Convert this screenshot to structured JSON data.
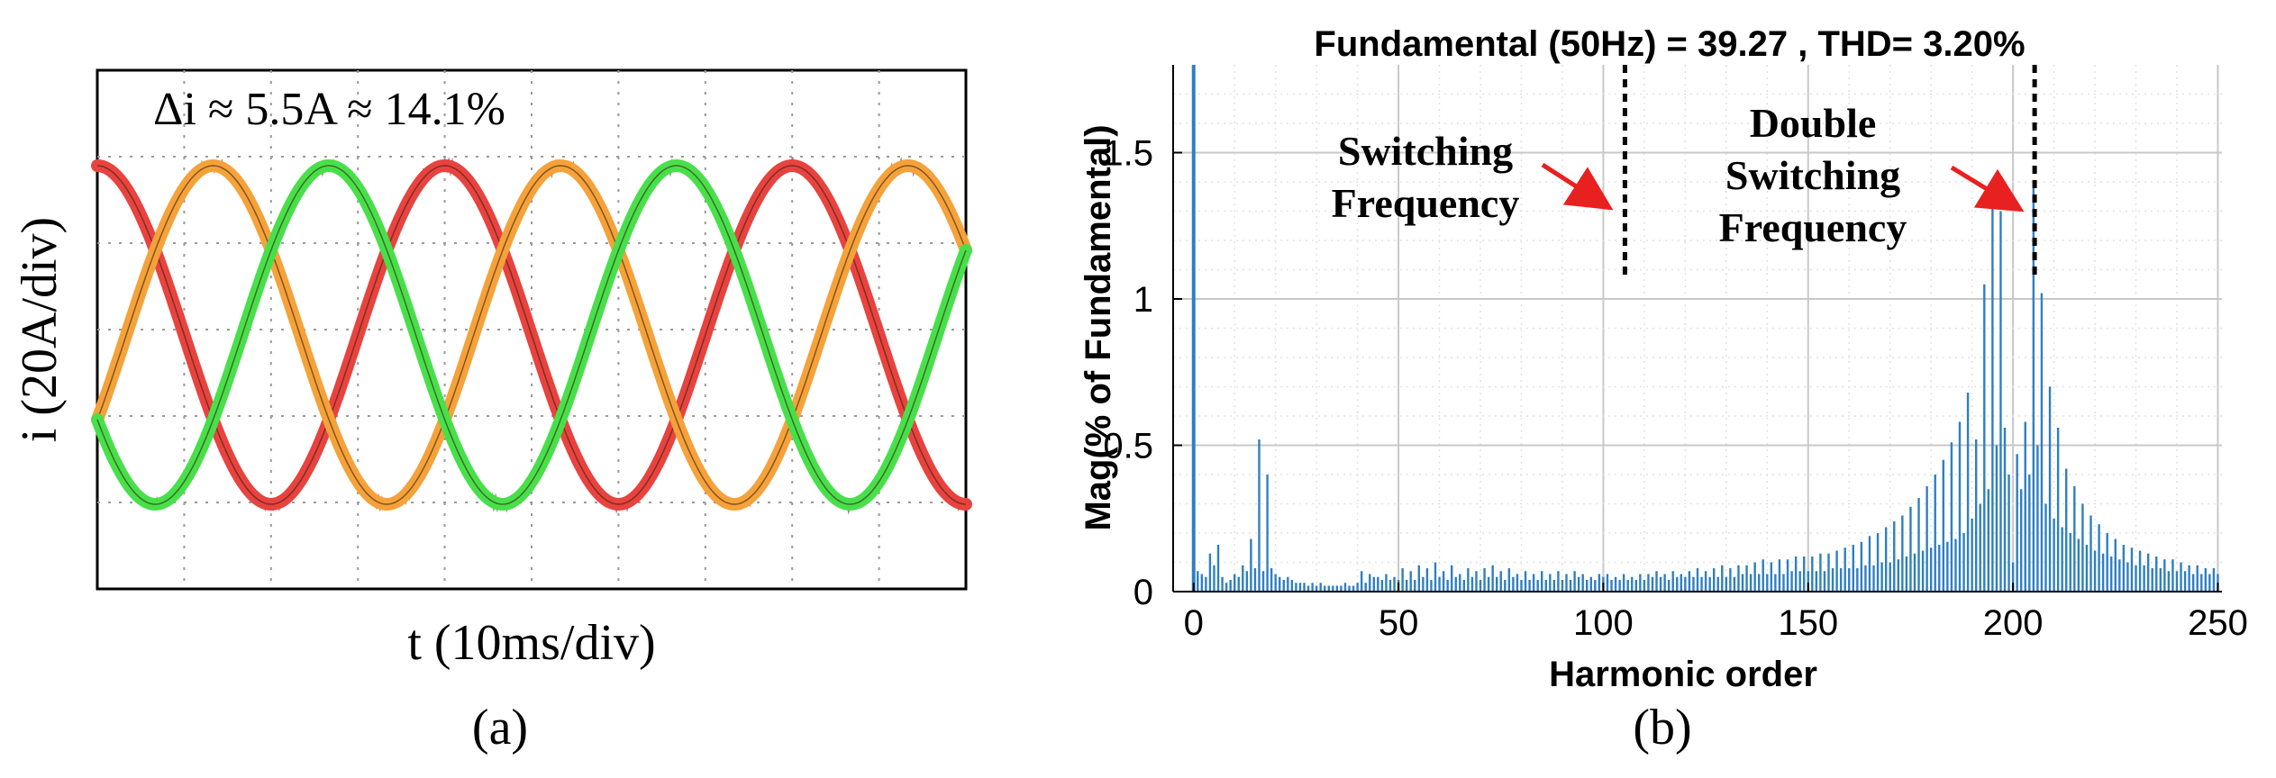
{
  "chart_data": [
    {
      "type": "line",
      "panel_label": "(a)",
      "annotation": "Δi ≈ 5.5A ≈  14.1%",
      "xlabel": "t (10ms/div)",
      "ylabel": "i (20A/div)",
      "xlim": [
        0,
        10
      ],
      "ylim": [
        -1.5,
        1.5
      ],
      "grid": true,
      "phase_shift_deg": [
        0,
        -120,
        120
      ],
      "series": [
        {
          "color": "#e8433f",
          "amplitude": 1.0,
          "phase_deg": 90
        },
        {
          "color": "#f5a23a",
          "amplitude": 1.0,
          "phase_deg": -30
        },
        {
          "color": "#48e04a",
          "amplitude": 1.0,
          "phase_deg": 210
        }
      ],
      "period_div": 4.0,
      "ripple_color": "#5a2b1a"
    },
    {
      "type": "bar",
      "panel_label": "(b)",
      "title": "Fundamental (50Hz) = 39.27 , THD= 3.20%",
      "xlabel": "Harmonic order",
      "ylabel": "Mag(% of Fundamental)",
      "xlim": [
        -5,
        251
      ],
      "ylim": [
        0,
        1.8
      ],
      "xticks": [
        0,
        50,
        100,
        150,
        200,
        250
      ],
      "yticks": [
        0,
        0.5,
        1,
        1.5
      ],
      "ytick_labels": [
        "0",
        "0.5",
        "1",
        "1.5"
      ],
      "grid": true,
      "bar_color": "#2f7fc1",
      "fundamental": {
        "x": 0,
        "value": 100
      },
      "harmonics": [
        [
          1,
          0.07
        ],
        [
          2,
          0.06
        ],
        [
          3,
          0.05
        ],
        [
          4,
          0.13
        ],
        [
          5,
          0.09
        ],
        [
          6,
          0.16
        ],
        [
          7,
          0.05
        ],
        [
          8,
          0.03
        ],
        [
          9,
          0.04
        ],
        [
          10,
          0.06
        ],
        [
          11,
          0.05
        ],
        [
          12,
          0.09
        ],
        [
          13,
          0.07
        ],
        [
          14,
          0.18
        ],
        [
          15,
          0.08
        ],
        [
          16,
          0.52
        ],
        [
          17,
          0.07
        ],
        [
          18,
          0.4
        ],
        [
          19,
          0.08
        ],
        [
          20,
          0.06
        ],
        [
          21,
          0.05
        ],
        [
          22,
          0.04
        ],
        [
          23,
          0.05
        ],
        [
          24,
          0.04
        ],
        [
          25,
          0.03
        ],
        [
          26,
          0.03
        ],
        [
          27,
          0.03
        ],
        [
          28,
          0.02
        ],
        [
          29,
          0.03
        ],
        [
          30,
          0.02
        ],
        [
          31,
          0.03
        ],
        [
          32,
          0.02
        ],
        [
          33,
          0.02
        ],
        [
          34,
          0.02
        ],
        [
          35,
          0.02
        ],
        [
          36,
          0.02
        ],
        [
          37,
          0.03
        ],
        [
          38,
          0.02
        ],
        [
          39,
          0.02
        ],
        [
          40,
          0.03
        ],
        [
          41,
          0.07
        ],
        [
          42,
          0.03
        ],
        [
          43,
          0.06
        ],
        [
          44,
          0.05
        ],
        [
          45,
          0.05
        ],
        [
          46,
          0.04
        ],
        [
          47,
          0.06
        ],
        [
          48,
          0.04
        ],
        [
          49,
          0.05
        ],
        [
          50,
          0.04
        ],
        [
          51,
          0.08
        ],
        [
          52,
          0.04
        ],
        [
          53,
          0.07
        ],
        [
          54,
          0.04
        ],
        [
          55,
          0.09
        ],
        [
          56,
          0.05
        ],
        [
          57,
          0.08
        ],
        [
          58,
          0.04
        ],
        [
          59,
          0.1
        ],
        [
          60,
          0.05
        ],
        [
          61,
          0.07
        ],
        [
          62,
          0.04
        ],
        [
          63,
          0.09
        ],
        [
          64,
          0.05
        ],
        [
          65,
          0.06
        ],
        [
          66,
          0.04
        ],
        [
          67,
          0.08
        ],
        [
          68,
          0.05
        ],
        [
          69,
          0.07
        ],
        [
          70,
          0.04
        ],
        [
          71,
          0.08
        ],
        [
          72,
          0.05
        ],
        [
          73,
          0.09
        ],
        [
          74,
          0.05
        ],
        [
          75,
          0.07
        ],
        [
          76,
          0.04
        ],
        [
          77,
          0.08
        ],
        [
          78,
          0.05
        ],
        [
          79,
          0.06
        ],
        [
          80,
          0.04
        ],
        [
          81,
          0.07
        ],
        [
          82,
          0.04
        ],
        [
          83,
          0.06
        ],
        [
          84,
          0.04
        ],
        [
          85,
          0.07
        ],
        [
          86,
          0.04
        ],
        [
          87,
          0.06
        ],
        [
          88,
          0.04
        ],
        [
          89,
          0.07
        ],
        [
          90,
          0.04
        ],
        [
          91,
          0.06
        ],
        [
          92,
          0.04
        ],
        [
          93,
          0.07
        ],
        [
          94,
          0.05
        ],
        [
          95,
          0.06
        ],
        [
          96,
          0.04
        ],
        [
          97,
          0.05
        ],
        [
          98,
          0.04
        ],
        [
          99,
          0.06
        ],
        [
          100,
          0.05
        ],
        [
          101,
          0.06
        ],
        [
          102,
          0.04
        ],
        [
          103,
          0.05
        ],
        [
          104,
          0.04
        ],
        [
          105,
          0.06
        ],
        [
          106,
          0.04
        ],
        [
          107,
          0.05
        ],
        [
          108,
          0.04
        ],
        [
          109,
          0.06
        ],
        [
          110,
          0.04
        ],
        [
          111,
          0.06
        ],
        [
          112,
          0.05
        ],
        [
          113,
          0.07
        ],
        [
          114,
          0.05
        ],
        [
          115,
          0.06
        ],
        [
          116,
          0.04
        ],
        [
          117,
          0.07
        ],
        [
          118,
          0.05
        ],
        [
          119,
          0.06
        ],
        [
          120,
          0.05
        ],
        [
          121,
          0.07
        ],
        [
          122,
          0.05
        ],
        [
          123,
          0.08
        ],
        [
          124,
          0.05
        ],
        [
          125,
          0.07
        ],
        [
          126,
          0.05
        ],
        [
          127,
          0.08
        ],
        [
          128,
          0.05
        ],
        [
          129,
          0.09
        ],
        [
          130,
          0.05
        ],
        [
          131,
          0.08
        ],
        [
          132,
          0.05
        ],
        [
          133,
          0.09
        ],
        [
          134,
          0.06
        ],
        [
          135,
          0.09
        ],
        [
          136,
          0.06
        ],
        [
          137,
          0.1
        ],
        [
          138,
          0.06
        ],
        [
          139,
          0.11
        ],
        [
          140,
          0.06
        ],
        [
          141,
          0.1
        ],
        [
          142,
          0.06
        ],
        [
          143,
          0.11
        ],
        [
          144,
          0.06
        ],
        [
          145,
          0.11
        ],
        [
          146,
          0.07
        ],
        [
          147,
          0.12
        ],
        [
          148,
          0.07
        ],
        [
          149,
          0.12
        ],
        [
          150,
          0.07
        ],
        [
          151,
          0.12
        ],
        [
          152,
          0.07
        ],
        [
          153,
          0.13
        ],
        [
          154,
          0.07
        ],
        [
          155,
          0.13
        ],
        [
          156,
          0.08
        ],
        [
          157,
          0.14
        ],
        [
          158,
          0.08
        ],
        [
          159,
          0.15
        ],
        [
          160,
          0.08
        ],
        [
          161,
          0.16
        ],
        [
          162,
          0.08
        ],
        [
          163,
          0.17
        ],
        [
          164,
          0.09
        ],
        [
          165,
          0.19
        ],
        [
          166,
          0.09
        ],
        [
          167,
          0.2
        ],
        [
          168,
          0.1
        ],
        [
          169,
          0.22
        ],
        [
          170,
          0.1
        ],
        [
          171,
          0.24
        ],
        [
          172,
          0.11
        ],
        [
          173,
          0.26
        ],
        [
          174,
          0.12
        ],
        [
          175,
          0.29
        ],
        [
          176,
          0.13
        ],
        [
          177,
          0.32
        ],
        [
          178,
          0.14
        ],
        [
          179,
          0.36
        ],
        [
          180,
          0.15
        ],
        [
          181,
          0.4
        ],
        [
          182,
          0.16
        ],
        [
          183,
          0.45
        ],
        [
          184,
          0.17
        ],
        [
          185,
          0.51
        ],
        [
          186,
          0.18
        ],
        [
          187,
          0.58
        ],
        [
          188,
          0.2
        ],
        [
          189,
          0.68
        ],
        [
          190,
          0.25
        ],
        [
          191,
          0.52
        ],
        [
          192,
          0.3
        ],
        [
          193,
          1.05
        ],
        [
          194,
          0.35
        ],
        [
          195,
          1.41
        ],
        [
          196,
          0.5
        ],
        [
          197,
          1.3
        ],
        [
          198,
          0.56
        ],
        [
          199,
          0.4
        ],
        [
          200,
          0.1
        ],
        [
          201,
          0.47
        ],
        [
          202,
          0.35
        ],
        [
          203,
          0.58
        ],
        [
          204,
          0.4
        ],
        [
          205,
          1.38
        ],
        [
          206,
          0.5
        ],
        [
          207,
          1.02
        ],
        [
          208,
          0.3
        ],
        [
          209,
          0.7
        ],
        [
          210,
          0.25
        ],
        [
          211,
          0.56
        ],
        [
          212,
          0.22
        ],
        [
          213,
          0.42
        ],
        [
          214,
          0.2
        ],
        [
          215,
          0.36
        ],
        [
          216,
          0.18
        ],
        [
          217,
          0.3
        ],
        [
          218,
          0.16
        ],
        [
          219,
          0.26
        ],
        [
          220,
          0.14
        ],
        [
          221,
          0.23
        ],
        [
          222,
          0.13
        ],
        [
          223,
          0.2
        ],
        [
          224,
          0.12
        ],
        [
          225,
          0.18
        ],
        [
          226,
          0.11
        ],
        [
          227,
          0.16
        ],
        [
          228,
          0.1
        ],
        [
          229,
          0.15
        ],
        [
          230,
          0.09
        ],
        [
          231,
          0.14
        ],
        [
          232,
          0.09
        ],
        [
          233,
          0.13
        ],
        [
          234,
          0.08
        ],
        [
          235,
          0.12
        ],
        [
          236,
          0.08
        ],
        [
          237,
          0.11
        ],
        [
          238,
          0.07
        ],
        [
          239,
          0.11
        ],
        [
          240,
          0.07
        ],
        [
          241,
          0.1
        ],
        [
          242,
          0.07
        ],
        [
          243,
          0.09
        ],
        [
          244,
          0.06
        ],
        [
          245,
          0.09
        ],
        [
          246,
          0.06
        ],
        [
          247,
          0.08
        ],
        [
          248,
          0.06
        ],
        [
          249,
          0.08
        ],
        [
          250,
          0.06
        ]
      ],
      "markers": [
        {
          "x": 100,
          "label_lines": [
            "Switching",
            "Frequency"
          ]
        },
        {
          "x": 200,
          "label_lines": [
            "Double",
            "Switching",
            "Frequency"
          ]
        }
      ],
      "arrow_color": "#e8201f"
    }
  ]
}
